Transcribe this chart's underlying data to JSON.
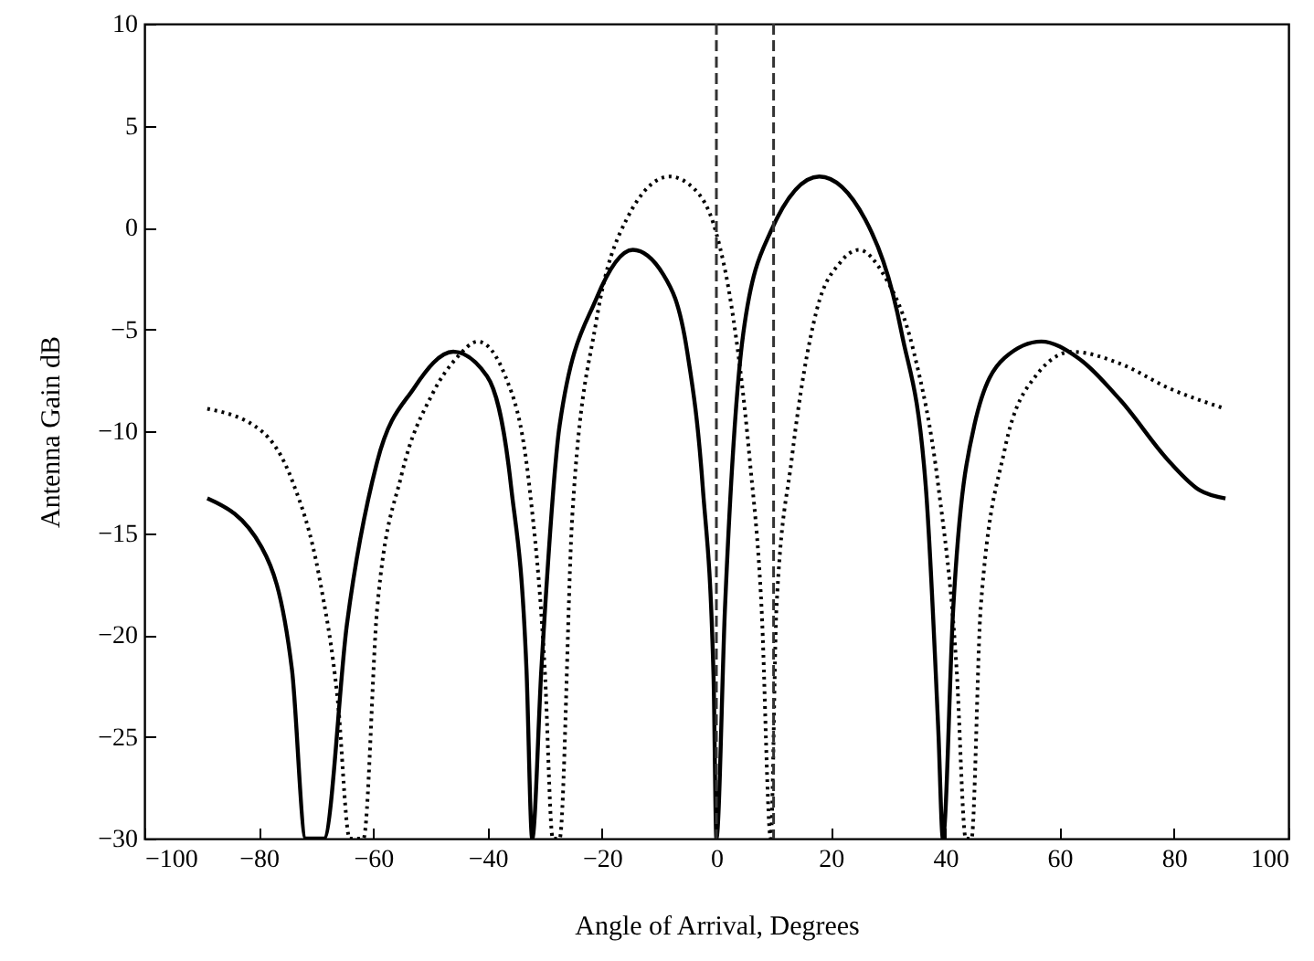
{
  "chart_data": {
    "type": "line",
    "xlabel": "Angle of Arrival, Degrees",
    "ylabel": "Antenna Gain  dB",
    "xlim": [
      -100,
      100
    ],
    "xticks": [
      -100,
      -80,
      -60,
      -40,
      -20,
      0,
      20,
      40,
      60,
      80,
      100
    ],
    "ylim": [
      -30,
      10
    ],
    "yticks": [
      -30,
      -25,
      -20,
      -15,
      -10,
      -5,
      0,
      5,
      10
    ],
    "grid": false,
    "marker": "none",
    "series": [
      {
        "color": "#000000",
        "line_style": "solid",
        "x": [
          -89,
          -79.5,
          -74.2,
          -71.8,
          -68.6,
          -64.6,
          -59.3,
          -52.9,
          -46,
          -40.1,
          -35.9,
          -33.2,
          -32.2,
          -30.6,
          -27.4,
          -21,
          -14.6,
          -9.3,
          -5.1,
          -2.4,
          -0.5,
          0,
          1.5,
          4.7,
          9.5,
          18,
          26,
          32.4,
          36.6,
          38.8,
          39.6,
          41.4,
          45.1,
          50.4,
          56.8,
          63.2,
          70.7,
          79.2,
          84.5,
          89
        ],
        "values": [
          -13.3,
          -15.7,
          -21.7,
          -30,
          -30,
          -19.5,
          -11.5,
          -7.9,
          -6.1,
          -7.3,
          -12.7,
          -21.7,
          -30,
          -21.7,
          -9.7,
          -3.5,
          -1.1,
          -2.3,
          -6.1,
          -12.7,
          -22,
          -30,
          -18.7,
          -5.2,
          -0.2,
          2.5,
          0.4,
          -5.2,
          -12.7,
          -24.7,
          -30,
          -18.7,
          -9.7,
          -6.4,
          -5.6,
          -6.4,
          -8.5,
          -11.5,
          -12.9,
          -13.3
        ]
      },
      {
        "color": "#000000",
        "line_style": "dotted",
        "x": [
          -89,
          -79.5,
          -74.2,
          -69.4,
          -66.2,
          -64.1,
          -61.7,
          -59.3,
          -55,
          -49.7,
          -45.4,
          -41.7,
          -36.9,
          -32.7,
          -30,
          -28.6,
          -27.4,
          -25.2,
          -21,
          -15.7,
          -8.2,
          -3.9,
          -0.1,
          2.6,
          5.8,
          7.9,
          9.5,
          10.5,
          13.2,
          17.5,
          21.7,
          24.9,
          29.2,
          34.5,
          38.8,
          42,
          43.6,
          44.6,
          46.2,
          50.4,
          55.8,
          62.2,
          70.7,
          79.2,
          89
        ],
        "values": [
          -8.9,
          -10,
          -12.4,
          -17.2,
          -23.2,
          -30,
          -30,
          -18.7,
          -12.1,
          -8.2,
          -6.4,
          -5.6,
          -7.3,
          -12.7,
          -21.7,
          -30,
          -30,
          -14.2,
          -4.6,
          0.4,
          2.5,
          1.9,
          -0.2,
          -3.8,
          -11.3,
          -18.7,
          -30,
          -18.7,
          -11.3,
          -4.1,
          -1.7,
          -1.1,
          -2.3,
          -6.1,
          -12.7,
          -21.7,
          -30,
          -30,
          -18.7,
          -10.9,
          -7.3,
          -6.1,
          -6.7,
          -7.9,
          -8.9
        ]
      }
    ],
    "ref_lines": [
      {
        "axis": "x",
        "value": 0,
        "color": "#333333",
        "line_style": "dashed"
      },
      {
        "axis": "x",
        "value": 10,
        "color": "#333333",
        "line_style": "dashed"
      }
    ]
  }
}
